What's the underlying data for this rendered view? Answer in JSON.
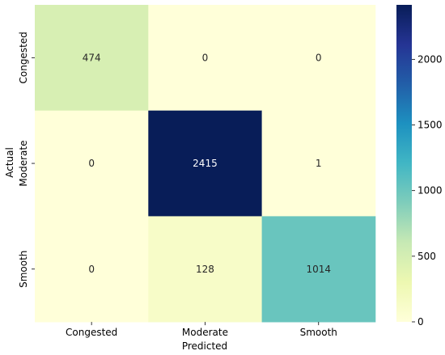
{
  "chart_data": {
    "type": "heatmap",
    "xlabel": "Predicted",
    "ylabel": "Actual",
    "x_categories": [
      "Congested",
      "Moderate",
      "Smooth"
    ],
    "y_categories": [
      "Congested",
      "Moderate",
      "Smooth"
    ],
    "values": [
      [
        474,
        0,
        0
      ],
      [
        0,
        2415,
        1
      ],
      [
        0,
        128,
        1014
      ]
    ],
    "value_labels": [
      [
        "474",
        "0",
        "0"
      ],
      [
        "0",
        "2415",
        "1"
      ],
      [
        "0",
        "128",
        "1014"
      ]
    ],
    "colormap": "YlGnBu",
    "colorbar": {
      "range": [
        0,
        2415
      ],
      "ticks": [
        0,
        500,
        1000,
        1500,
        2000
      ],
      "tick_labels": [
        "0",
        "500",
        "1000",
        "1500",
        "2000"
      ]
    }
  }
}
